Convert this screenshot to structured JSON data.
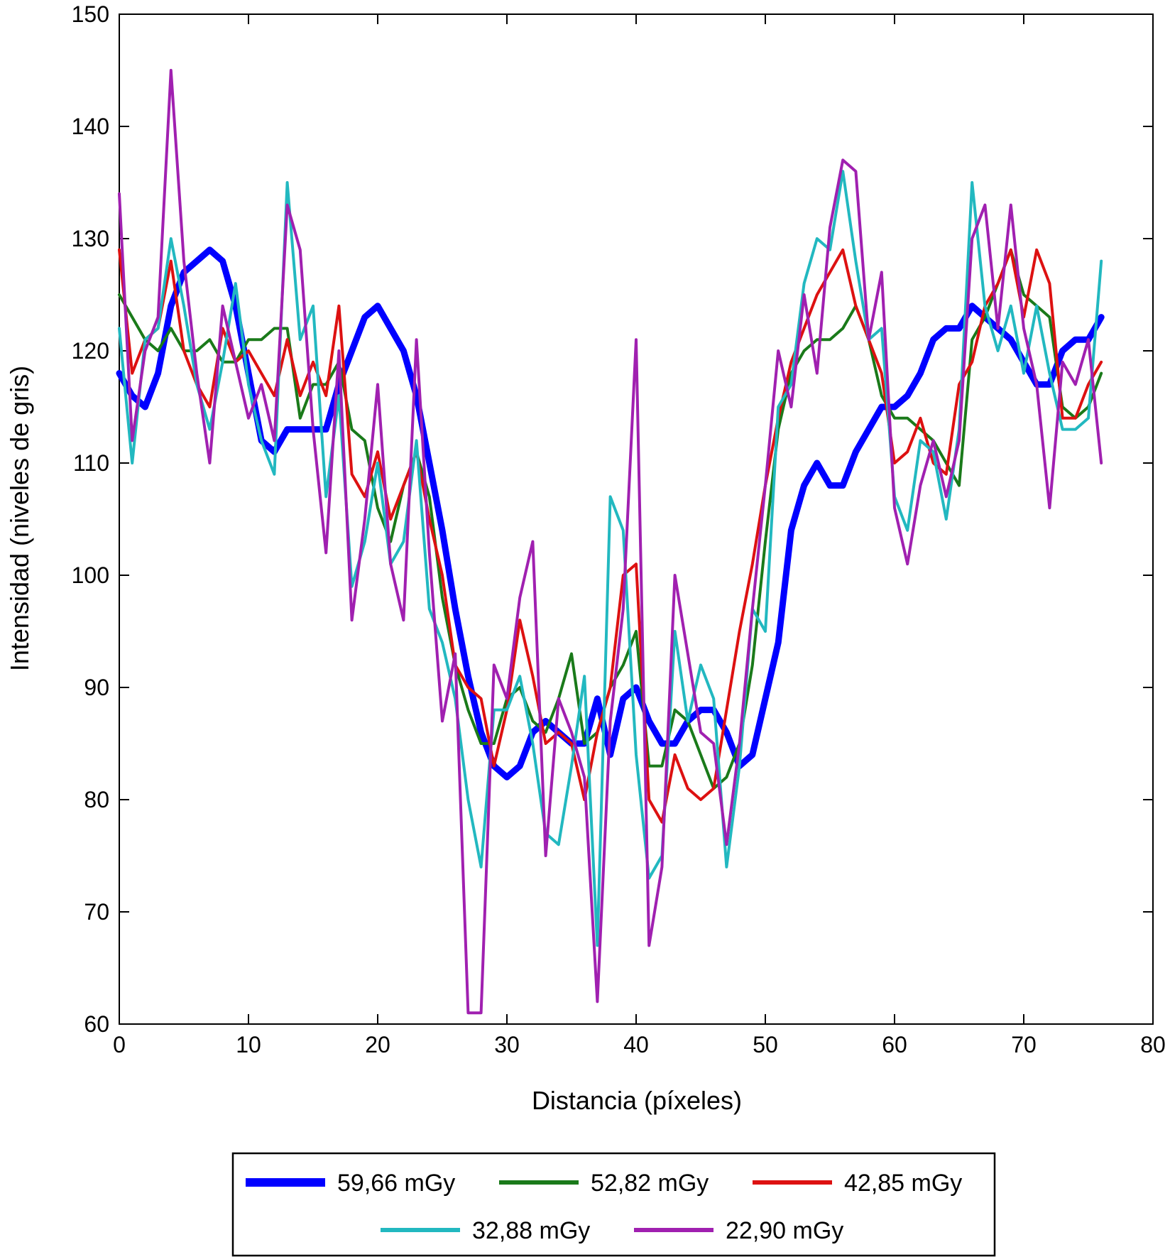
{
  "chart_data": {
    "type": "line",
    "title": "",
    "xlabel": "Distancia (píxeles)",
    "ylabel": "Intensidad (niveles de gris)",
    "xlim": [
      0,
      80
    ],
    "ylim": [
      60,
      150
    ],
    "xticks": [
      0,
      10,
      20,
      30,
      40,
      50,
      60,
      70,
      80
    ],
    "yticks": [
      60,
      70,
      80,
      90,
      100,
      110,
      120,
      130,
      140,
      150
    ],
    "grid": false,
    "legend_position": "bottom",
    "series": [
      {
        "name": "59,66 mGy",
        "color": "#0000ff",
        "x": [
          0,
          1,
          2,
          3,
          4,
          5,
          6,
          7,
          8,
          9,
          10,
          11,
          12,
          13,
          14,
          15,
          16,
          17,
          18,
          19,
          20,
          21,
          22,
          23,
          24,
          25,
          26,
          27,
          28,
          29,
          30,
          31,
          32,
          33,
          34,
          35,
          36,
          37,
          38,
          39,
          40,
          41,
          42,
          43,
          44,
          45,
          46,
          47,
          48,
          49,
          50,
          51,
          52,
          53,
          54,
          55,
          56,
          57,
          58,
          59,
          60,
          61,
          62,
          63,
          64,
          65,
          66,
          67,
          68,
          69,
          70,
          71,
          72,
          73,
          74,
          75,
          76
        ],
        "values": [
          118,
          116,
          115,
          118,
          124,
          127,
          128,
          129,
          128,
          124,
          118,
          112,
          111,
          113,
          113,
          113,
          113,
          117,
          120,
          123,
          124,
          122,
          120,
          116,
          110,
          104,
          97,
          91,
          86,
          83,
          82,
          83,
          86,
          87,
          86,
          85,
          85,
          89,
          84,
          89,
          90,
          87,
          85,
          85,
          87,
          88,
          88,
          86,
          83,
          84,
          89,
          94,
          104,
          108,
          110,
          108,
          108,
          111,
          113,
          115,
          115,
          116,
          118,
          121,
          122,
          122,
          124,
          123,
          122,
          121,
          119,
          117,
          117,
          120,
          121,
          121,
          123
        ]
      },
      {
        "name": "52,82 mGy",
        "color": "#1a7a1a",
        "x": [
          0,
          1,
          2,
          3,
          4,
          5,
          6,
          7,
          8,
          9,
          10,
          11,
          12,
          13,
          14,
          15,
          16,
          17,
          18,
          19,
          20,
          21,
          22,
          23,
          24,
          25,
          26,
          27,
          28,
          29,
          30,
          31,
          32,
          33,
          34,
          35,
          36,
          37,
          38,
          39,
          40,
          41,
          42,
          43,
          44,
          45,
          46,
          47,
          48,
          49,
          50,
          51,
          52,
          53,
          54,
          55,
          56,
          57,
          58,
          59,
          60,
          61,
          62,
          63,
          64,
          65,
          66,
          67,
          68,
          69,
          70,
          71,
          72,
          73,
          74,
          75,
          76
        ],
        "values": [
          125,
          123,
          121,
          120,
          122,
          120,
          120,
          121,
          119,
          119,
          121,
          121,
          122,
          122,
          114,
          117,
          117,
          119,
          113,
          112,
          106,
          103,
          108,
          111,
          107,
          98,
          92,
          88,
          85,
          85,
          89,
          90,
          87,
          86,
          89,
          93,
          85,
          86,
          90,
          92,
          95,
          83,
          83,
          88,
          87,
          84,
          81,
          82,
          85,
          92,
          103,
          113,
          118,
          120,
          121,
          121,
          122,
          124,
          121,
          116,
          114,
          114,
          113,
          112,
          110,
          108,
          121,
          123,
          126,
          129,
          125,
          124,
          123,
          115,
          114,
          115,
          118
        ]
      },
      {
        "name": "42,85 mGy",
        "color": "#dd1111",
        "x": [
          0,
          1,
          2,
          3,
          4,
          5,
          6,
          7,
          8,
          9,
          10,
          11,
          12,
          13,
          14,
          15,
          16,
          17,
          18,
          19,
          20,
          21,
          22,
          23,
          24,
          25,
          26,
          27,
          28,
          29,
          30,
          31,
          32,
          33,
          34,
          35,
          36,
          37,
          38,
          39,
          40,
          41,
          42,
          43,
          44,
          45,
          46,
          47,
          48,
          49,
          50,
          51,
          52,
          53,
          54,
          55,
          56,
          57,
          58,
          59,
          60,
          61,
          62,
          63,
          64,
          65,
          66,
          67,
          68,
          69,
          70,
          71,
          72,
          73,
          74,
          75,
          76
        ],
        "values": [
          129,
          118,
          121,
          122,
          128,
          120,
          117,
          115,
          122,
          119,
          120,
          118,
          116,
          121,
          116,
          119,
          116,
          124,
          109,
          107,
          111,
          105,
          108,
          111,
          105,
          100,
          92,
          90,
          89,
          83,
          88,
          96,
          91,
          85,
          86,
          85,
          80,
          86,
          90,
          100,
          101,
          80,
          78,
          84,
          81,
          80,
          81,
          88,
          95,
          101,
          108,
          114,
          119,
          122,
          125,
          127,
          129,
          124,
          121,
          118,
          110,
          111,
          114,
          110,
          109,
          117,
          119,
          124,
          126,
          129,
          123,
          129,
          126,
          114,
          114,
          117,
          119
        ]
      },
      {
        "name": "32,88 mGy",
        "color": "#22b8c0",
        "x": [
          0,
          1,
          2,
          3,
          4,
          5,
          6,
          7,
          8,
          9,
          10,
          11,
          12,
          13,
          14,
          15,
          16,
          17,
          18,
          19,
          20,
          21,
          22,
          23,
          24,
          25,
          26,
          27,
          28,
          29,
          30,
          31,
          32,
          33,
          34,
          35,
          36,
          37,
          38,
          39,
          40,
          41,
          42,
          43,
          44,
          45,
          46,
          47,
          48,
          49,
          50,
          51,
          52,
          53,
          54,
          55,
          56,
          57,
          58,
          59,
          60,
          61,
          62,
          63,
          64,
          65,
          66,
          67,
          68,
          69,
          70,
          71,
          72,
          73,
          74,
          75,
          76
        ],
        "values": [
          122,
          110,
          121,
          122,
          130,
          124,
          117,
          113,
          119,
          126,
          117,
          112,
          109,
          135,
          121,
          124,
          107,
          116,
          99,
          103,
          110,
          101,
          103,
          112,
          97,
          94,
          89,
          80,
          74,
          88,
          88,
          91,
          85,
          77,
          76,
          83,
          91,
          67,
          107,
          104,
          84,
          73,
          75,
          95,
          87,
          92,
          89,
          74,
          83,
          97,
          95,
          115,
          117,
          126,
          130,
          129,
          136,
          128,
          121,
          122,
          107,
          104,
          112,
          111,
          105,
          113,
          135,
          124,
          120,
          124,
          118,
          124,
          118,
          113,
          113,
          114,
          128
        ]
      },
      {
        "name": "22,90 mGy",
        "color": "#a020b0",
        "x": [
          0,
          1,
          2,
          3,
          4,
          5,
          6,
          7,
          8,
          9,
          10,
          11,
          12,
          13,
          14,
          15,
          16,
          17,
          18,
          19,
          20,
          21,
          22,
          23,
          24,
          25,
          26,
          27,
          28,
          29,
          30,
          31,
          32,
          33,
          34,
          35,
          36,
          37,
          38,
          39,
          40,
          41,
          42,
          43,
          44,
          45,
          46,
          47,
          48,
          49,
          50,
          51,
          52,
          53,
          54,
          55,
          56,
          57,
          58,
          59,
          60,
          61,
          62,
          63,
          64,
          65,
          66,
          67,
          68,
          69,
          70,
          71,
          72,
          73,
          74,
          75,
          76
        ],
        "values": [
          134,
          112,
          120,
          123,
          145,
          128,
          118,
          110,
          124,
          119,
          114,
          117,
          112,
          133,
          129,
          113,
          102,
          120,
          96,
          105,
          117,
          101,
          96,
          121,
          102,
          87,
          93,
          61,
          61,
          92,
          89,
          98,
          103,
          75,
          89,
          86,
          82,
          62,
          87,
          97,
          121,
          67,
          74,
          100,
          93,
          86,
          85,
          76,
          85,
          97,
          108,
          120,
          115,
          125,
          118,
          131,
          137,
          136,
          121,
          127,
          106,
          101,
          108,
          112,
          107,
          112,
          130,
          133,
          122,
          133,
          122,
          117,
          106,
          119,
          117,
          121,
          110
        ]
      }
    ]
  }
}
